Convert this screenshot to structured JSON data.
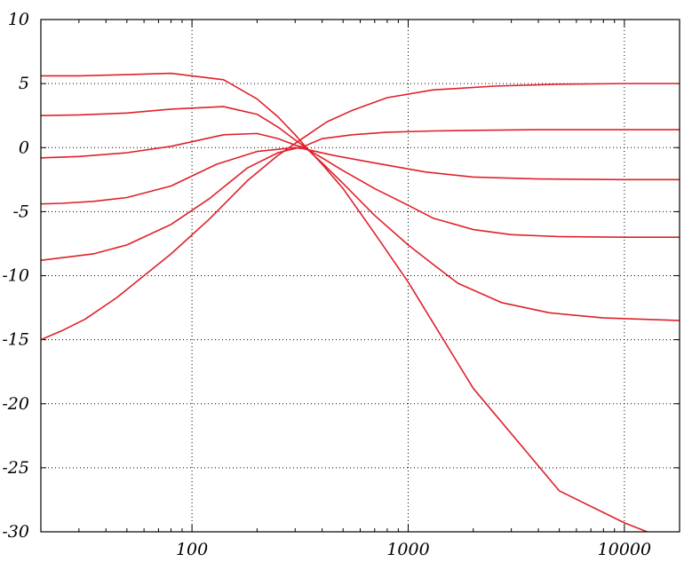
{
  "chart_data": {
    "type": "line",
    "title": "",
    "xlabel": "",
    "ylabel": "",
    "x_scale": "log",
    "xlim": [
      20,
      18000
    ],
    "ylim": [
      -30,
      10
    ],
    "grid": true,
    "line_color": "#e0202a",
    "x_ticks": [
      {
        "value": 100,
        "label": "100"
      },
      {
        "value": 1000,
        "label": "1000"
      },
      {
        "value": 10000,
        "label": "10000"
      }
    ],
    "y_ticks": [
      {
        "value": 10,
        "label": "10"
      },
      {
        "value": 5,
        "label": "5"
      },
      {
        "value": 0,
        "label": "0"
      },
      {
        "value": -5,
        "label": "-5"
      },
      {
        "value": -10,
        "label": "-10"
      },
      {
        "value": -15,
        "label": "-15"
      },
      {
        "value": -20,
        "label": "-20"
      },
      {
        "value": -25,
        "label": "-25"
      },
      {
        "value": -30,
        "label": "-30"
      }
    ],
    "series": [
      {
        "x": [
          20,
          30,
          50,
          80,
          140,
          200,
          250,
          300,
          330,
          400,
          500,
          700,
          1000,
          2000,
          5000,
          10000,
          18000
        ],
        "y": [
          5.6,
          5.6,
          5.7,
          5.8,
          5.3,
          3.8,
          2.4,
          1.0,
          0.2,
          -1.3,
          -3.2,
          -6.7,
          -10.5,
          -18.8,
          -26.8,
          -29.3,
          -31.0
        ]
      },
      {
        "x": [
          20,
          30,
          50,
          80,
          140,
          200,
          250,
          300,
          330,
          400,
          500,
          700,
          1000,
          1300,
          1700,
          2700,
          4500,
          8000,
          18000
        ],
        "y": [
          2.5,
          2.55,
          2.7,
          3.0,
          3.2,
          2.6,
          1.6,
          0.6,
          0.1,
          -1.2,
          -2.8,
          -5.3,
          -7.6,
          -9.1,
          -10.6,
          -12.1,
          -12.9,
          -13.3,
          -13.5
        ]
      },
      {
        "x": [
          20,
          30,
          50,
          80,
          140,
          200,
          250,
          300,
          330,
          400,
          500,
          700,
          1000,
          1300,
          2000,
          3000,
          5000,
          10000,
          18000
        ],
        "y": [
          -0.8,
          -0.7,
          -0.4,
          0.1,
          1.0,
          1.1,
          0.7,
          0.2,
          0.0,
          -0.8,
          -1.8,
          -3.2,
          -4.5,
          -5.5,
          -6.4,
          -6.8,
          -6.95,
          -7.0,
          -7.0
        ]
      },
      {
        "x": [
          20,
          25,
          35,
          50,
          80,
          130,
          200,
          300,
          330,
          450,
          700,
          1200,
          2000,
          4000,
          10000,
          18000
        ],
        "y": [
          -4.4,
          -4.35,
          -4.2,
          -3.9,
          -3.0,
          -1.3,
          -0.3,
          0.0,
          -0.1,
          -0.6,
          -1.2,
          -1.9,
          -2.3,
          -2.45,
          -2.5,
          -2.5
        ]
      },
      {
        "x": [
          20,
          25,
          35,
          50,
          80,
          120,
          180,
          250,
          330,
          400,
          550,
          800,
          1300,
          2000,
          4000,
          10000,
          18000
        ],
        "y": [
          -8.8,
          -8.6,
          -8.3,
          -7.6,
          -6.0,
          -4.0,
          -1.6,
          -0.4,
          0.1,
          0.7,
          1.0,
          1.2,
          1.3,
          1.35,
          1.4,
          1.4,
          1.4
        ]
      },
      {
        "x": [
          20,
          25,
          32,
          45,
          60,
          80,
          120,
          180,
          250,
          330,
          420,
          550,
          800,
          1300,
          2500,
          5000,
          10000,
          18000
        ],
        "y": [
          -15.0,
          -14.3,
          -13.4,
          -11.7,
          -10.0,
          -8.3,
          -5.6,
          -2.6,
          -0.6,
          0.8,
          2.0,
          2.9,
          3.9,
          4.5,
          4.8,
          4.95,
          5.0,
          5.0
        ]
      }
    ]
  }
}
